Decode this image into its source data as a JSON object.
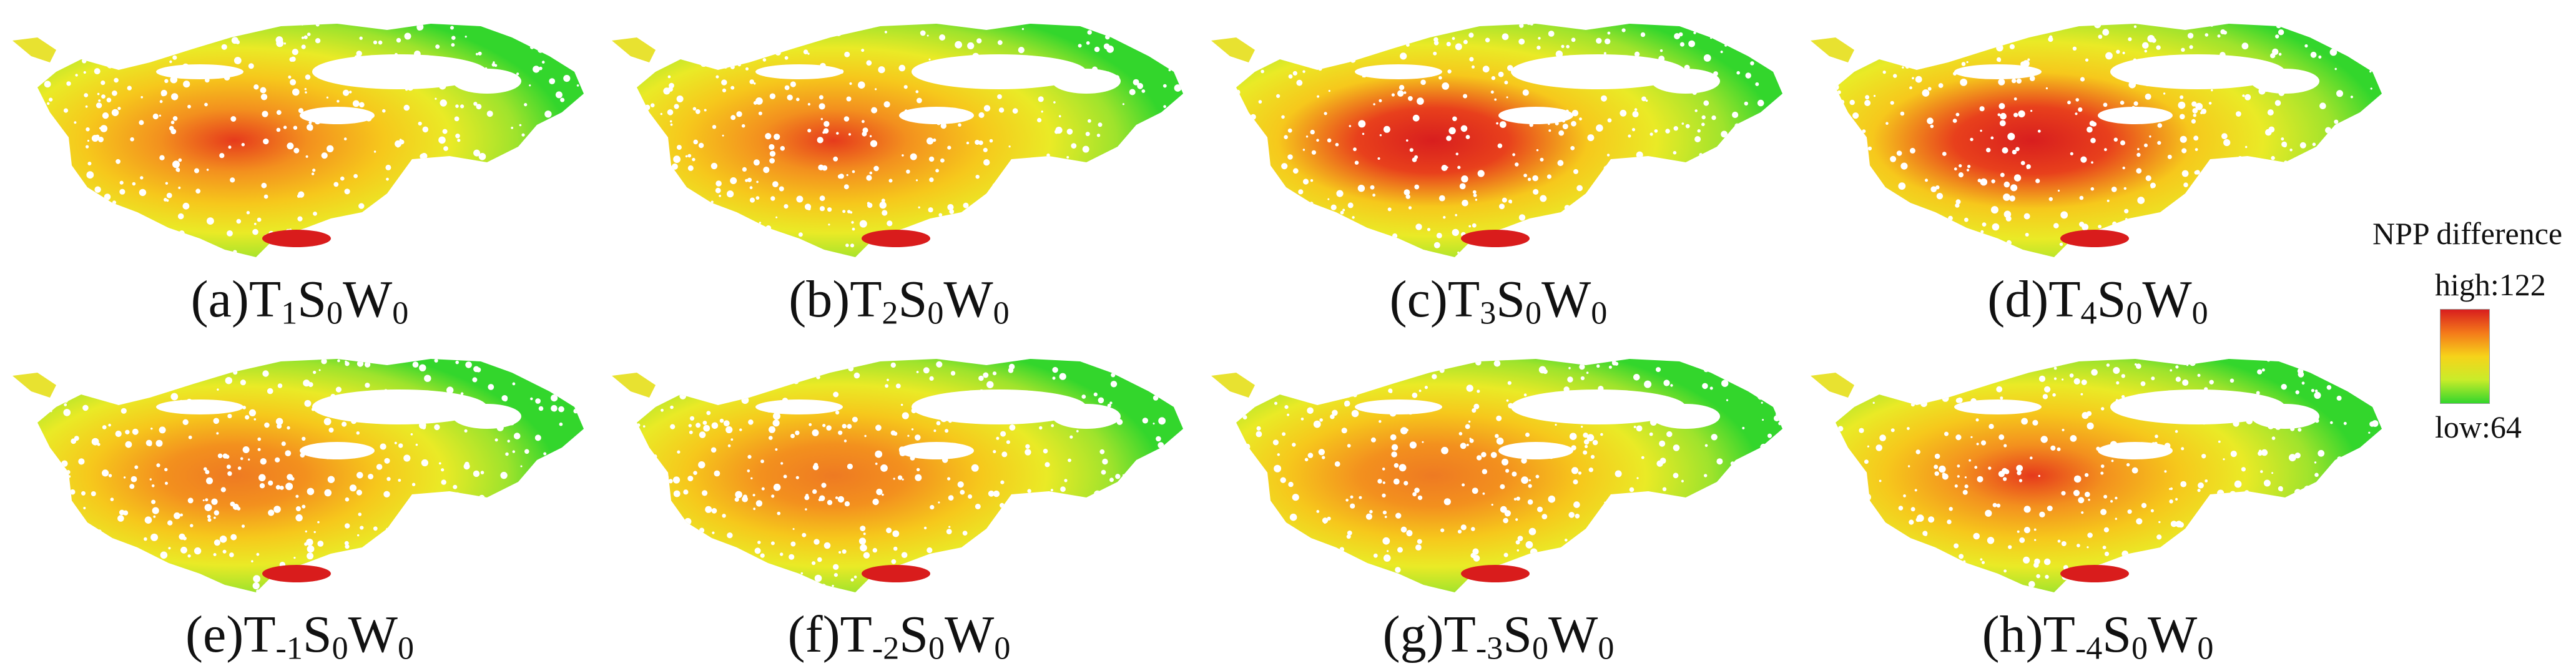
{
  "panels": [
    {
      "label": "(a)T",
      "sub_t": "1",
      "mid": "S",
      "sub_s": "0",
      "tail": "W",
      "sub_w": "0",
      "intensity": 0.55
    },
    {
      "label": "(b)T",
      "sub_t": "2",
      "mid": "S",
      "sub_s": "0",
      "tail": "W",
      "sub_w": "0",
      "intensity": 0.65
    },
    {
      "label": "(c)T",
      "sub_t": "3",
      "mid": "S",
      "sub_s": "0",
      "tail": "W",
      "sub_w": "0",
      "intensity": 0.82
    },
    {
      "label": "(d)T",
      "sub_t": "4",
      "mid": "S",
      "sub_s": "0",
      "tail": "W",
      "sub_w": "0",
      "intensity": 1.0
    },
    {
      "label": "(e)T",
      "sub_t": "-1",
      "mid": "S",
      "sub_s": "0",
      "tail": "W",
      "sub_w": "0",
      "intensity": 0.4
    },
    {
      "label": "(f)T",
      "sub_t": "-2",
      "mid": "S",
      "sub_s": "0",
      "tail": "W",
      "sub_w": "0",
      "intensity": 0.45
    },
    {
      "label": "(g)T",
      "sub_t": "-3",
      "mid": "S",
      "sub_s": "0",
      "tail": "W",
      "sub_w": "0",
      "intensity": 0.48
    },
    {
      "label": "(h)T",
      "sub_t": "-4",
      "mid": "S",
      "sub_s": "0",
      "tail": "W",
      "sub_w": "0",
      "intensity": 0.52
    }
  ],
  "legend": {
    "title": "NPP difference",
    "high_label": "high:122",
    "low_label": "low:64",
    "high_value": 122,
    "low_value": 64,
    "colors": [
      "#d81e1e",
      "#f47a1a",
      "#f6d31a",
      "#c9ec2a",
      "#33d62c"
    ]
  }
}
